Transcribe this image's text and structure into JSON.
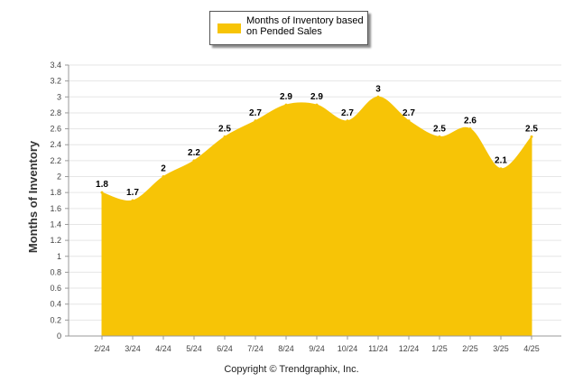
{
  "chart_data": {
    "type": "area",
    "categories": [
      "2/24",
      "3/24",
      "4/24",
      "5/24",
      "6/24",
      "7/24",
      "8/24",
      "9/24",
      "10/24",
      "11/24",
      "12/24",
      "1/25",
      "2/25",
      "3/25",
      "4/25"
    ],
    "series": [
      {
        "name": "Months of Inventory based on Pended Sales",
        "values": [
          1.8,
          1.7,
          2,
          2.2,
          2.5,
          2.7,
          2.9,
          2.9,
          2.7,
          3,
          2.7,
          2.5,
          2.6,
          2.1,
          2.5
        ]
      }
    ],
    "data_labels": [
      "1.8",
      "1.7",
      "2",
      "2.2",
      "2.5",
      "2.7",
      "2.9",
      "2.9",
      "2.7",
      "3",
      "2.7",
      "2.5",
      "2.6",
      "2.1",
      "2.5"
    ],
    "ylabel": "Months of Inventory",
    "ylim": [
      0,
      3.4
    ],
    "yticks": [
      "0",
      "0.2",
      "0.4",
      "0.6",
      "0.8",
      "1",
      "1.2",
      "1.4",
      "1.6",
      "1.8",
      "2",
      "2.2",
      "2.4",
      "2.6",
      "2.8",
      "3",
      "3.2",
      "3.4"
    ],
    "grid": true,
    "legend_placement": "top-center",
    "colors": {
      "fill": "#F7C406",
      "grid": "#E6E6E6",
      "axis": "#999999"
    }
  },
  "legend": {
    "label": "Months of Inventory based on Pended Sales"
  },
  "footer": {
    "copyright": "Copyright © Trendgraphix, Inc."
  }
}
